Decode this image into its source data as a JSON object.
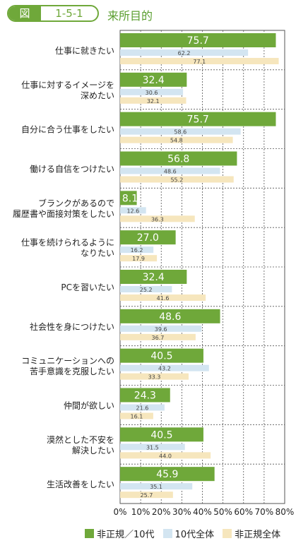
{
  "header": {
    "figure_label": "図",
    "figure_number": "1-5-1",
    "title": "来所目的"
  },
  "colors": {
    "series1": "#6fa83a",
    "series2": "#d3e5f1",
    "series3": "#f6e6bd",
    "accent": "#6fa83a"
  },
  "chart_data": {
    "type": "bar",
    "orientation": "horizontal",
    "title": "来所目的",
    "categories": [
      "仕事に就きたい",
      "仕事に対するイメージを\n深めたい",
      "自分に合う仕事をしたい",
      "働ける自信をつけたい",
      "ブランクがあるので\n履歴書や面接対策をしたい",
      "仕事を続けられるように\nなりたい",
      "PCを習いたい",
      "社会性を身につけたい",
      "コミュニケーションへの\n苦手意識を克服したい",
      "仲間が欲しい",
      "漠然とした不安を\n解決したい",
      "生活改善をしたい"
    ],
    "series": [
      {
        "name": "非正規／10代",
        "values": [
          75.7,
          32.4,
          75.7,
          56.8,
          8.1,
          27.0,
          32.4,
          48.6,
          40.5,
          24.3,
          40.5,
          45.9
        ]
      },
      {
        "name": "10代全体",
        "values": [
          62.2,
          30.6,
          58.6,
          48.6,
          12.6,
          16.2,
          25.2,
          39.6,
          43.2,
          21.6,
          31.5,
          35.1
        ]
      },
      {
        "name": "非正規全体",
        "values": [
          77.1,
          32.1,
          54.8,
          55.2,
          36.3,
          17.9,
          41.6,
          36.7,
          33.3,
          16.1,
          44.0,
          25.7
        ]
      }
    ],
    "xlim": [
      0,
      80
    ],
    "xticks": [
      "0%",
      "10%",
      "20%",
      "30%",
      "40%",
      "50%",
      "60%",
      "70%",
      "80%"
    ],
    "grid": true,
    "legend_position": "bottom"
  }
}
